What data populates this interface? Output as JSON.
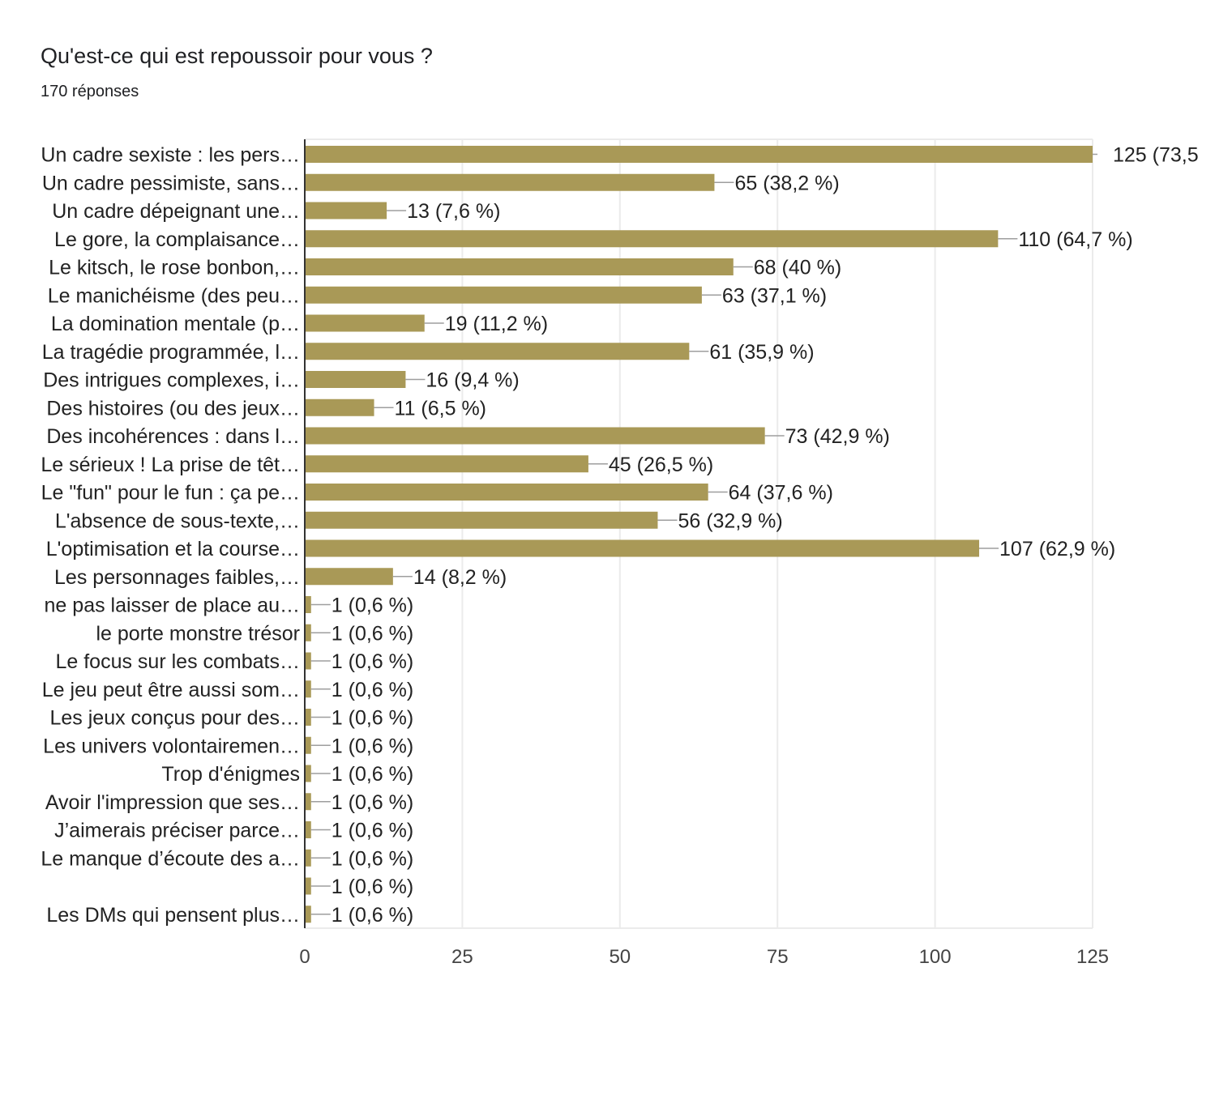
{
  "header": {
    "title": "Qu'est-ce qui est repoussoir pour vous ?",
    "responses": "170 réponses"
  },
  "colors": {
    "bar": "#a99957",
    "grid": "#ebebeb",
    "axis": "#333333",
    "leader": "#9e9e9e",
    "text": "#222222"
  },
  "chart_data": {
    "type": "bar",
    "orientation": "horizontal",
    "title": "Qu'est-ce qui est repoussoir pour vous ?",
    "subtitle": "170 réponses",
    "xlabel": "",
    "ylabel": "",
    "xlim": [
      0,
      125
    ],
    "xticks": [
      "0",
      "25",
      "50",
      "75",
      "100",
      "125"
    ],
    "grid": true,
    "categories": [
      "Un cadre sexiste : les pers…",
      "Un cadre pessimiste, sans…",
      "Un cadre dépeignant une…",
      "Le gore, la complaisance…",
      "Le kitsch, le rose bonbon,…",
      "Le manichéisme (des peu…",
      "La domination mentale (p…",
      "La tragédie programmée, l…",
      "Des intrigues complexes, i…",
      "Des histoires (ou des jeux…",
      "Des incohérences : dans l…",
      "Le sérieux ! La prise de têt…",
      "Le \"fun\" pour le fun : ça pe…",
      "L'absence de sous-texte,…",
      "L'optimisation et la course…",
      "Les personnages faibles,…",
      "ne pas laisser de place au…",
      "le porte monstre trésor",
      "Le focus sur les combats…",
      "Le jeu peut être aussi som…",
      "Les jeux conçus pour des…",
      "Les univers volontairemen…",
      "Trop d'énigmes",
      "Avoir l'impression que ses…",
      "J’aimerais préciser parce…",
      "Le manque d’écoute des a…",
      "",
      "Les DMs qui pensent plus…"
    ],
    "values": [
      125,
      65,
      13,
      110,
      68,
      63,
      19,
      61,
      16,
      11,
      73,
      45,
      64,
      56,
      107,
      14,
      1,
      1,
      1,
      1,
      1,
      1,
      1,
      1,
      1,
      1,
      1,
      1
    ],
    "data_labels": [
      "125 (73,5",
      "65 (38,2 %)",
      "13 (7,6 %)",
      "110 (64,7 %)",
      "68 (40 %)",
      "63 (37,1 %)",
      "19 (11,2 %)",
      "61 (35,9 %)",
      "16 (9,4 %)",
      "11 (6,5 %)",
      "73 (42,9 %)",
      "45 (26,5 %)",
      "64 (37,6 %)",
      "56 (32,9 %)",
      "107 (62,9 %)",
      "14 (8,2 %)",
      "1 (0,6 %)",
      "1 (0,6 %)",
      "1 (0,6 %)",
      "1 (0,6 %)",
      "1 (0,6 %)",
      "1 (0,6 %)",
      "1 (0,6 %)",
      "1 (0,6 %)",
      "1 (0,6 %)",
      "1 (0,6 %)",
      "1 (0,6 %)",
      "1 (0,6 %)"
    ]
  }
}
